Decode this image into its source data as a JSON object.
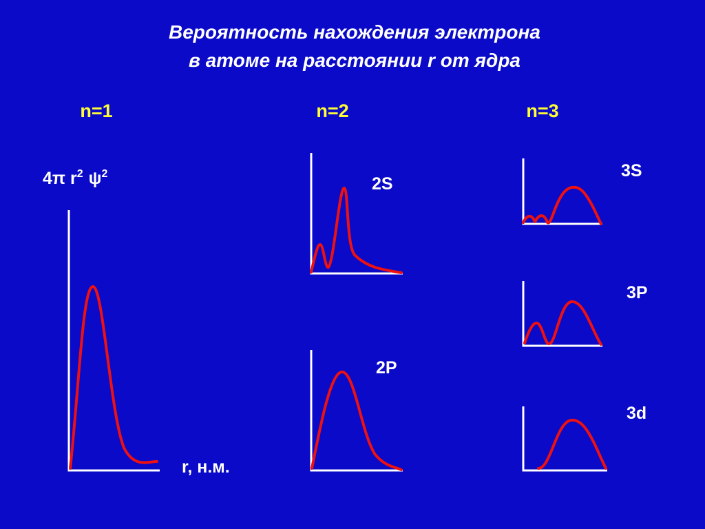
{
  "title": [
    "Вероятность нахождения электрона",
    "в атоме на расстоянии r от ядра"
  ],
  "columns": [
    "n=1",
    "n=2",
    "n=3"
  ],
  "y_label": {
    "base": "4π r",
    "sup1": "2",
    "psi": "ψ",
    "sup2": "2"
  },
  "x_label": "r, н.м.",
  "orbitals": [
    "2S",
    "2P",
    "3S",
    "3P",
    "3d"
  ]
}
